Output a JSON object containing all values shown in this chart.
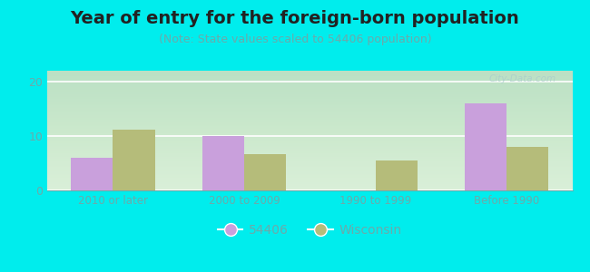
{
  "title": "Year of entry for the foreign-born population",
  "subtitle": "(Note: State values scaled to 54406 population)",
  "categories": [
    "2010 or later",
    "2000 to 2009",
    "1990 to 1999",
    "Before 1990"
  ],
  "values_54406": [
    6,
    10,
    0,
    16
  ],
  "values_wisconsin": [
    11.2,
    6.7,
    5.5,
    8.0
  ],
  "bar_color_54406": "#c9a0dc",
  "bar_color_wisconsin": "#b5bc7a",
  "background_outer": "#00eded",
  "background_plot_top": "#e8f5e9",
  "background_plot_bottom": "#f5fff5",
  "ylim": [
    0,
    22
  ],
  "yticks": [
    0,
    10,
    20
  ],
  "bar_width": 0.32,
  "legend_labels": [
    "54406",
    "Wisconsin"
  ],
  "title_fontsize": 14,
  "subtitle_fontsize": 9,
  "tick_label_color": "#6aabab",
  "grid_color": "#d0e8d0",
  "watermark": "City-Data.com"
}
